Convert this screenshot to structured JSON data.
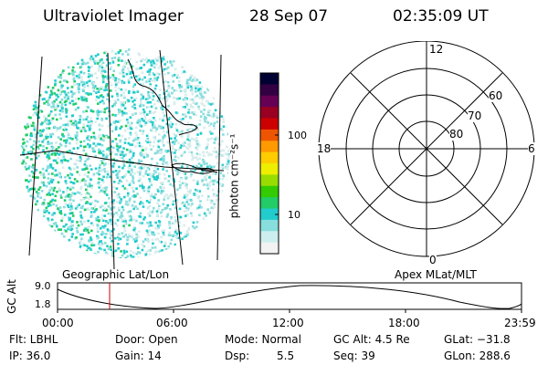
{
  "header": {
    "title": "Ultraviolet Imager",
    "date": "28 Sep 07",
    "time": "02:35:09 UT"
  },
  "colorbar": {
    "unit_label": "photon cm⁻²s⁻¹",
    "ticks": [
      "100",
      "10"
    ],
    "colors": [
      "#000033",
      "#330044",
      "#660055",
      "#990022",
      "#cc0000",
      "#ee5500",
      "#ff9900",
      "#ffcc00",
      "#eeee00",
      "#99dd00",
      "#33cc00",
      "#22cc66",
      "#22cccc",
      "#88dddd",
      "#cceeee",
      "#f2f2f2"
    ]
  },
  "geo_panel": {
    "label": "Geographic Lat/Lon"
  },
  "polar_panel": {
    "label": "Apex MLat/MLT",
    "mlt_labels": {
      "top": "12",
      "bottom": "0",
      "left": "18",
      "right": "6"
    },
    "lat_labels": [
      "60",
      "70",
      "80"
    ]
  },
  "altitude_plot": {
    "ylabel": "GC Alt",
    "yticks": [
      "9.0",
      "1.8"
    ],
    "xticks": [
      "00:00",
      "06:00",
      "12:00",
      "18:00",
      "23:59"
    ],
    "marker_time": "02:35",
    "marker_color": "#cc0000"
  },
  "footer": {
    "flt": "Flt: LBHL",
    "ip": "IP: 36.0",
    "door": "Door: Open",
    "gain": "Gain: 14",
    "mode": "Mode: Normal",
    "dsp_label": "Dsp:",
    "dsp_value": "5.5",
    "gc_alt": "GC Alt: 4.5 Re",
    "seq": "Seq: 39",
    "glat": "GLat: −31.8",
    "glon": "GLon: 288.6"
  }
}
